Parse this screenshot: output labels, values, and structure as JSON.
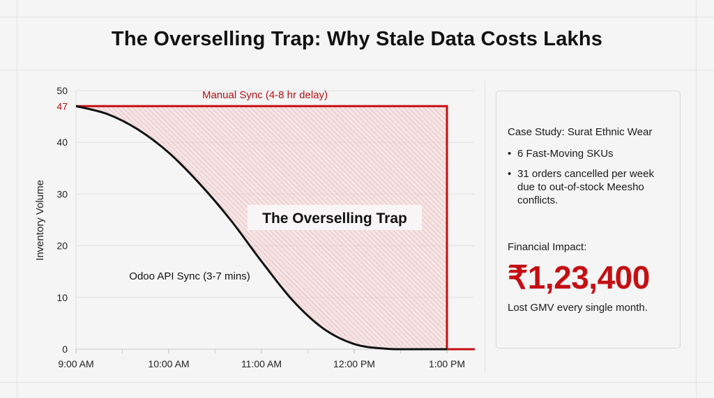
{
  "title": "The Overselling Trap: Why Stale Data Costs Lakhs",
  "colors": {
    "accent": "#c40f12",
    "api_line": "#111111",
    "hatch": "#e06a6a"
  },
  "chart_data": {
    "type": "line",
    "title": "",
    "xlabel": "",
    "ylabel": "Inventory Volume",
    "xlim": [
      "9:00",
      "1:20"
    ],
    "ylim": [
      0,
      50
    ],
    "grid": true,
    "x_ticks": [
      "9:00 AM",
      "10:00 AM",
      "11:00 AM",
      "12:00 PM",
      "1:00 PM"
    ],
    "y_ticks": [
      "0",
      "10",
      "20",
      "30",
      "40",
      "50"
    ],
    "highlight_tick": "47",
    "series": [
      {
        "name": "Manual Sync (4-8 hr delay)",
        "color": "#c40f12",
        "x": [
          "9:00",
          "1:00",
          "1:00",
          "1:18"
        ],
        "y": [
          47,
          47,
          0,
          0
        ]
      },
      {
        "name": "Odoo API Sync (3-7 mins)",
        "color": "#111111",
        "x": [
          "9:00",
          "9:20",
          "9:40",
          "10:00",
          "10:20",
          "10:40",
          "11:00",
          "11:20",
          "11:40",
          "12:00",
          "12:20",
          "12:40",
          "1:00"
        ],
        "y": [
          47,
          45.5,
          42.5,
          38,
          32,
          25,
          17,
          9.5,
          4,
          1,
          0.1,
          0,
          0
        ]
      }
    ],
    "annotations": {
      "area_label": "The Overselling Trap"
    }
  },
  "card": {
    "heading": "Case Study: Surat Ethnic Wear",
    "bullets": [
      "6 Fast-Moving SKUs",
      "31 orders cancelled per week due to out-of-stock Meesho conflicts."
    ],
    "impact_label": "Financial Impact:",
    "impact_value": "₹1,23,400",
    "impact_caption": "Lost GMV every single month."
  }
}
